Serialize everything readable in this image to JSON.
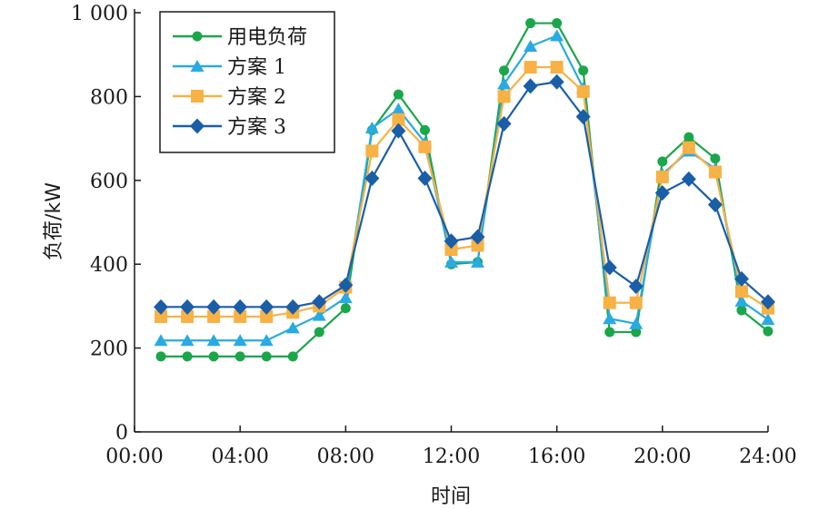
{
  "chart_data": {
    "type": "line",
    "title": "",
    "xlabel": "时间",
    "ylabel": "负荷/kW",
    "xlim": [
      0,
      24
    ],
    "ylim": [
      0,
      1000
    ],
    "x_ticks": [
      0,
      4,
      8,
      12,
      16,
      20,
      24
    ],
    "x_tick_labels": [
      "00:00",
      "04:00",
      "08:00",
      "12:00",
      "16:00",
      "20:00",
      "24:00"
    ],
    "y_ticks": [
      0,
      200,
      400,
      600,
      800,
      1000
    ],
    "y_tick_labels": [
      "0",
      "200",
      "400",
      "600",
      "800",
      "1 000"
    ],
    "grid": false,
    "legend_position": "top-left",
    "x": [
      1,
      2,
      3,
      4,
      5,
      6,
      7,
      8,
      9,
      10,
      11,
      12,
      13,
      14,
      15,
      16,
      17,
      18,
      19,
      20,
      21,
      22,
      23,
      24
    ],
    "series": [
      {
        "name": "用电负荷",
        "color": "#1aa64a",
        "marker": "circle",
        "values": [
          180,
          180,
          180,
          180,
          180,
          180,
          238,
          295,
          720,
          805,
          720,
          400,
          405,
          862,
          975,
          975,
          862,
          238,
          238,
          645,
          703,
          652,
          290,
          240
        ]
      },
      {
        "name": "方案 1",
        "color": "#29aae2",
        "marker": "triangle",
        "values": [
          218,
          218,
          218,
          218,
          218,
          248,
          278,
          320,
          725,
          770,
          690,
          405,
          405,
          830,
          920,
          945,
          820,
          270,
          258,
          615,
          670,
          628,
          312,
          268
        ]
      },
      {
        "name": "方案 2",
        "color": "#f7b144",
        "marker": "square",
        "values": [
          275,
          275,
          275,
          275,
          275,
          285,
          300,
          345,
          670,
          745,
          680,
          435,
          445,
          800,
          870,
          870,
          812,
          308,
          308,
          608,
          678,
          620,
          335,
          295
        ]
      },
      {
        "name": "方案 3",
        "color": "#1a5ea8",
        "marker": "diamond",
        "values": [
          298,
          298,
          298,
          298,
          298,
          298,
          310,
          350,
          605,
          718,
          605,
          455,
          465,
          735,
          825,
          835,
          752,
          392,
          347,
          570,
          603,
          542,
          365,
          310
        ]
      }
    ]
  }
}
